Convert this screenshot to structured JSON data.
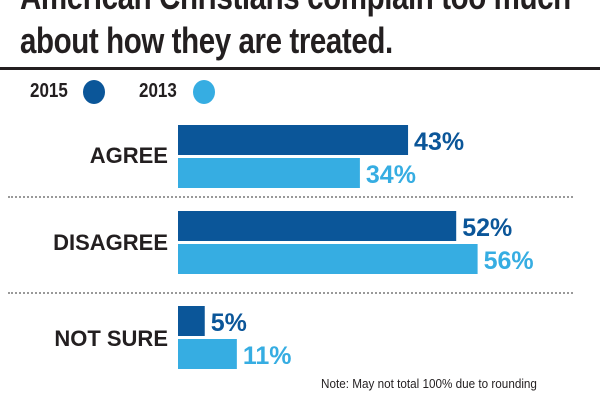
{
  "title_line1": "American Christians complain too much",
  "title_line2": "about how they are treated.",
  "note": "Note: May not total 100% due to rounding",
  "colors": {
    "2015": "#0b5699",
    "2013": "#36ade2"
  },
  "chart_data": {
    "type": "bar",
    "orientation": "horizontal",
    "title": "American Christians complain too much about how they are treated.",
    "categories": [
      "AGREE",
      "DISAGREE",
      "NOT SURE"
    ],
    "series": [
      {
        "name": "2015",
        "values": [
          43,
          52,
          5
        ],
        "labels": [
          "43%",
          "52%",
          "5%"
        ]
      },
      {
        "name": "2013",
        "values": [
          34,
          56,
          11
        ],
        "labels": [
          "34%",
          "56%",
          "11%"
        ]
      }
    ],
    "xlim": [
      0,
      100
    ],
    "legend": "top-left",
    "grid": false
  }
}
